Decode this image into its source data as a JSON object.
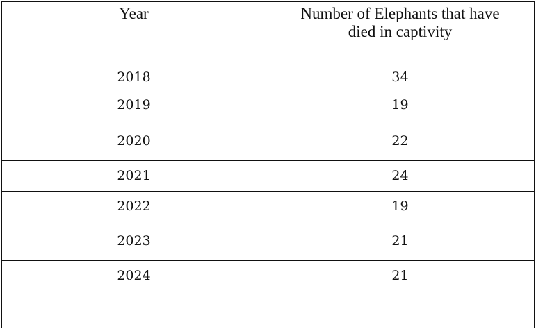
{
  "table": {
    "headers": [
      "Year",
      "Number of Elephants that have died in captivity"
    ],
    "rows": [
      [
        2018,
        34
      ],
      [
        2019,
        19
      ],
      [
        2020,
        22
      ],
      [
        2021,
        24
      ],
      [
        2022,
        19
      ],
      [
        2023,
        21
      ],
      [
        2024,
        21
      ]
    ]
  }
}
